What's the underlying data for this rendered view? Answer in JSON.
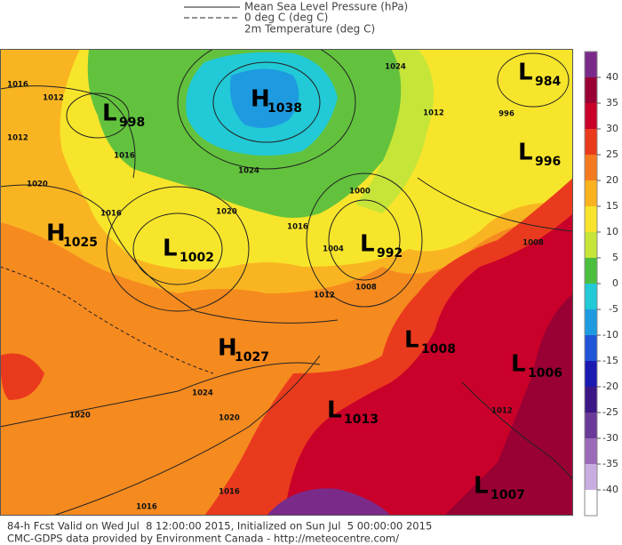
{
  "legend": [
    "Mean Sea Level Pressure (hPa)",
    "0 deg C (deg C)",
    "2m Temperature (deg C)"
  ],
  "pressure_centers": [
    {
      "letter": "H",
      "value": 1038
    },
    {
      "letter": "L",
      "value": 998
    },
    {
      "letter": "L",
      "value": 984
    },
    {
      "letter": "L",
      "value": 996
    },
    {
      "letter": "H",
      "value": 1025
    },
    {
      "letter": "L",
      "value": 1002
    },
    {
      "letter": "L",
      "value": 992
    },
    {
      "letter": "H",
      "value": 1027
    },
    {
      "letter": "L",
      "value": 1008
    },
    {
      "letter": "L",
      "value": 1006
    },
    {
      "letter": "L",
      "value": 1013
    },
    {
      "letter": "L",
      "value": 1007
    }
  ],
  "isobar_labels": [
    1016,
    1012,
    1012,
    1016,
    1020,
    1016,
    1020,
    1024,
    1016,
    1000,
    1004,
    1012,
    1008,
    1012,
    1024,
    996,
    1008,
    1024,
    1020,
    1020,
    1016,
    1016,
    1012
  ],
  "colorbar": {
    "ticks": [
      40,
      35,
      30,
      25,
      20,
      15,
      10,
      5,
      0,
      -5,
      -10,
      -15,
      -20,
      -25,
      -30,
      -35,
      -40
    ],
    "colors": [
      "#7a2b8a",
      "#990033",
      "#c9002a",
      "#ea3a1d",
      "#f47a1f",
      "#fbb21f",
      "#f8e42a",
      "#c6e539",
      "#4cbf3f",
      "#22c9d6",
      "#1e9be0",
      "#2055d8",
      "#1a1ab0",
      "#3b1785",
      "#6a3a98",
      "#9b6bb8",
      "#c8aee0",
      "#ffffff"
    ]
  },
  "footer": [
    "84-h Fcst Valid on Wed Jul  8 12:00:00 2015, Initialized on Sun Jul  5 00:00:00 2015",
    "CMC-GDPS data provided by Environment Canada - http://meteocentre.com/"
  ]
}
